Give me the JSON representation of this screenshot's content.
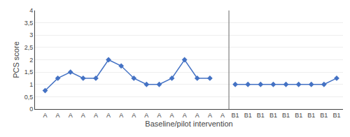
{
  "chart_data": {
    "type": "line",
    "xlabel": "Baseline/pilot intervention",
    "ylabel": "PCS score",
    "categories": [
      "A",
      "A",
      "A",
      "A",
      "A",
      "A",
      "A",
      "A",
      "A",
      "A",
      "A",
      "A",
      "A",
      "A",
      "A",
      "B1",
      "B1",
      "B1",
      "B1",
      "B1",
      "B1",
      "B1",
      "B1",
      "B1"
    ],
    "values": [
      0.75,
      1.25,
      1.5,
      1.25,
      1.25,
      2.0,
      1.75,
      1.25,
      1.0,
      1.0,
      1.25,
      2.0,
      1.25,
      1.25,
      null,
      1.0,
      1.0,
      1.0,
      1.0,
      1.0,
      1.0,
      1.0,
      1.0,
      1.25
    ],
    "color": "#4472C4",
    "marker": "diamond",
    "ylim": [
      0,
      4
    ],
    "yticks": [
      0,
      {
        "value": 0.5,
        "label": "0,5"
      },
      1,
      {
        "value": 1.5,
        "label": "1,5"
      },
      2,
      {
        "value": 2.5,
        "label": "2,5"
      },
      3,
      {
        "value": 3.5,
        "label": "3,5"
      },
      4
    ],
    "grid": true
  }
}
